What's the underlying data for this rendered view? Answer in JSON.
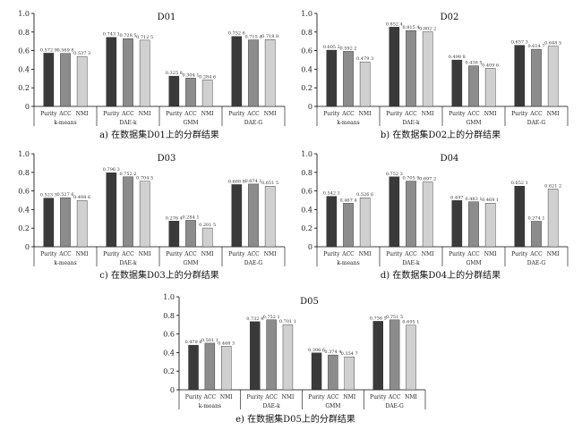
{
  "chart_data": [
    {
      "type": "bar",
      "title": "D01",
      "caption": "a) 在数据集D01上的分群结果",
      "metrics": [
        "Purity",
        "ACC",
        "NMI"
      ],
      "groups": [
        "k-means",
        "DAE-k",
        "GMM",
        "DAE-G"
      ],
      "series": [
        {
          "name": "Purity",
          "values": [
            0.5729,
            0.7431,
            0.3258,
            0.7526
          ]
        },
        {
          "name": "ACC",
          "values": [
            0.5698,
            0.7285,
            0.3041,
            0.7154
          ]
        },
        {
          "name": "NMI",
          "values": [
            0.5373,
            0.7125,
            0.2846,
            0.7188
          ]
        }
      ],
      "labels": [
        [
          "0.572 9",
          "0.569 8",
          "0.537 3"
        ],
        [
          "0.743 1",
          "0.728 5",
          "0.712 5"
        ],
        [
          "0.325 8",
          "0.304 1",
          "0.284 6"
        ],
        [
          "0.752 6",
          "0.715 4",
          "0.718 8"
        ]
      ],
      "ylim": [
        0,
        1.0
      ],
      "yticks": [
        "0",
        "0.2",
        "0.4",
        "0.6",
        "0.8",
        "1.0"
      ]
    },
    {
      "type": "bar",
      "title": "D02",
      "caption": "b) 在数据集D02上的分群结果",
      "metrics": [
        "Purity",
        "ACC",
        "NMI"
      ],
      "groups": [
        "k-means",
        "DAE-k",
        "GMM",
        "DAE-G"
      ],
      "series": [
        {
          "name": "Purity",
          "values": [
            0.6052,
            0.8524,
            0.4988,
            0.6573
          ]
        },
        {
          "name": "ACC",
          "values": [
            0.5922,
            0.8154,
            0.4365,
            0.6147
          ]
        },
        {
          "name": "NMI",
          "values": [
            0.4793,
            0.8022,
            0.4096,
            0.6485
          ]
        }
      ],
      "labels": [
        [
          "0.605 2",
          "0.592 2",
          "0.479 3"
        ],
        [
          "0.852 4",
          "0.815 4",
          "0.802 2"
        ],
        [
          "0.498 8",
          "0.436 5",
          "0.409 6"
        ],
        [
          "0.657 3",
          "0.614 7",
          "0.648 5"
        ]
      ],
      "ylim": [
        0,
        1.0
      ],
      "yticks": [
        "0",
        "0.2",
        "0.4",
        "0.6",
        "0.8",
        "1.0"
      ]
    },
    {
      "type": "bar",
      "title": "D03",
      "caption": "c) 在数据集D03上的分群结果",
      "metrics": [
        "Purity",
        "ACC",
        "NMI"
      ],
      "groups": [
        "k-means",
        "DAE-k",
        "GMM",
        "DAE-G"
      ],
      "series": [
        {
          "name": "Purity",
          "values": [
            0.5233,
            0.7963,
            0.2764,
            0.6688
          ]
        },
        {
          "name": "ACC",
          "values": [
            0.5276,
            0.7522,
            0.2841,
            0.6741
          ]
        },
        {
          "name": "NMI",
          "values": [
            0.4986,
            0.7045,
            0.2015,
            0.6515
          ]
        }
      ],
      "labels": [
        [
          "0.523 3",
          "0.527 6",
          "0.498 6"
        ],
        [
          "0.796 3",
          "0.752 2",
          "0.704 5"
        ],
        [
          "0.276 4",
          "0.284 1",
          "0.201 5"
        ],
        [
          "0.668 8",
          "0.674 1",
          "0.651 5"
        ]
      ],
      "ylim": [
        0,
        1.0
      ],
      "yticks": [
        "0",
        "0.2",
        "0.4",
        "0.6",
        "0.8",
        "1.0"
      ]
    },
    {
      "type": "bar",
      "title": "D04",
      "caption": "d) 在数据集D04上的分群结果",
      "metrics": [
        "Purity",
        "ACC",
        "NMI"
      ],
      "groups": [
        "k-means",
        "DAE-k",
        "GMM",
        "DAE-G"
      ],
      "series": [
        {
          "name": "Purity",
          "values": [
            0.5421,
            0.7523,
            0.497,
            0.6521
          ]
        },
        {
          "name": "ACC",
          "values": [
            0.4674,
            0.7059,
            0.4831,
            0.2741
          ]
        },
        {
          "name": "NMI",
          "values": [
            0.5266,
            0.6972,
            0.4691,
            0.6212
          ]
        }
      ],
      "labels": [
        [
          "0.542 1",
          "0.467 4",
          "0.526 6"
        ],
        [
          "0.752 3",
          "0.705 9",
          "0.697 2"
        ],
        [
          "0.497",
          "0.483 1",
          "0.469 1"
        ],
        [
          "0.652 1",
          "0.274 1",
          "0.621 2"
        ]
      ],
      "ylim": [
        0,
        1.0
      ],
      "yticks": [
        "0",
        "0.2",
        "0.4",
        "0.6",
        "0.8",
        "1.0"
      ]
    },
    {
      "type": "bar",
      "title": "D05",
      "caption": "e) 在数据集D05上的分群结果",
      "metrics": [
        "Purity",
        "ACC",
        "NMI"
      ],
      "groups": [
        "k-means",
        "DAE-k",
        "GMM",
        "DAE-G"
      ],
      "series": [
        {
          "name": "Purity",
          "values": [
            0.4798,
            0.7324,
            0.3966,
            0.7365
          ]
        },
        {
          "name": "ACC",
          "values": [
            0.5011,
            0.7521,
            0.3744,
            0.7515
          ]
        },
        {
          "name": "NMI",
          "values": [
            0.4683,
            0.7011,
            0.3547,
            0.6951
          ]
        }
      ],
      "labels": [
        [
          "0.479 8",
          "0.501 1",
          "0.468 3"
        ],
        [
          "0.732 4",
          "0.752 1",
          "0.701 1"
        ],
        [
          "0.396 6",
          "0.374 4",
          "0.354 7"
        ],
        [
          "0.736 5",
          "0.751 5",
          "0.695 1"
        ]
      ],
      "ylim": [
        0,
        1.0
      ],
      "yticks": [
        "0",
        "0.2",
        "0.4",
        "0.6",
        "0.8",
        "1.0"
      ]
    }
  ],
  "colors": {
    "Purity": "#3a3a3a",
    "ACC": "#8c8c8c",
    "NMI": "#d0d0d0",
    "axis": "#000000"
  }
}
